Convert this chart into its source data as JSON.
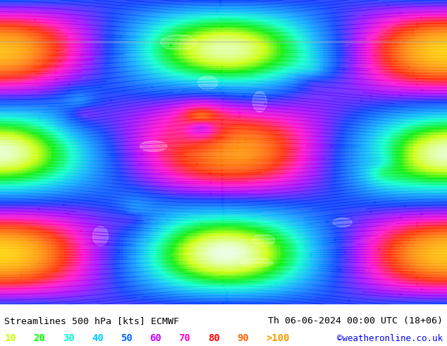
{
  "title_left": "Streamlines 500 hPa [kts] ECMWF",
  "title_right": "Th 06-06-2024 00:00 UTC (18+06)",
  "credit": "©weatheronline.co.uk",
  "legend_values": [
    "10",
    "20",
    "30",
    "40",
    "50",
    "60",
    "70",
    "80",
    "90",
    ">100"
  ],
  "legend_colors": [
    "#ccff00",
    "#00ff00",
    "#00ffcc",
    "#00ccff",
    "#0066ff",
    "#cc00ff",
    "#ff00cc",
    "#ff0000",
    "#ff6600",
    "#ff9900"
  ],
  "bg_color": "#ffffff",
  "map_bg": "#e8ffe8",
  "bottom_bar_color": "#ffffff",
  "title_color": "#000000",
  "credit_color": "#0000ff",
  "figsize": [
    6.34,
    4.9
  ],
  "dpi": 100
}
